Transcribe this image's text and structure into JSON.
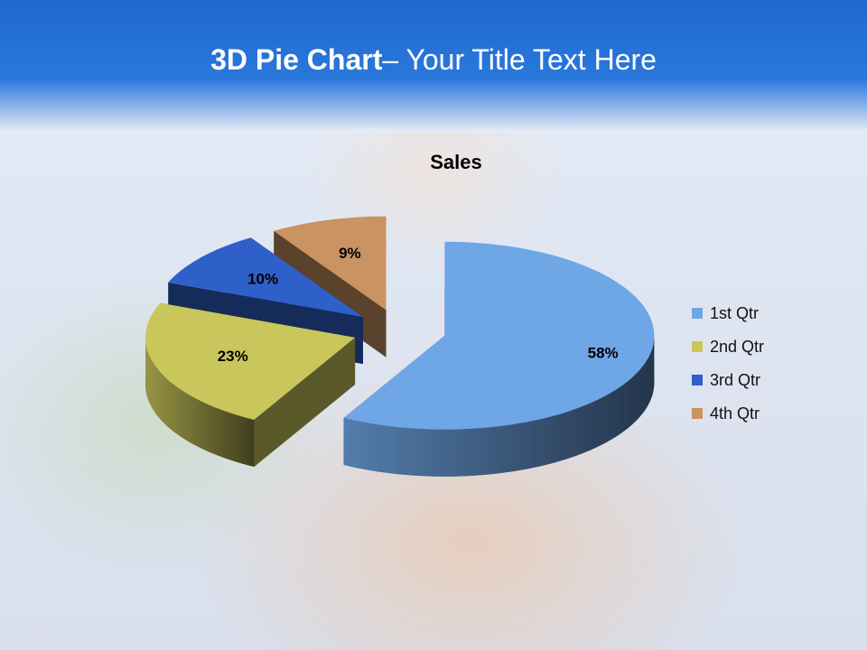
{
  "slide": {
    "title_bold": "3D Pie Chart",
    "title_rest": "– Your Title Text Here"
  },
  "chart_data": {
    "type": "pie",
    "title": "Sales",
    "categories": [
      "1st Qtr",
      "2nd Qtr",
      "3rd Qtr",
      "4th Qtr"
    ],
    "values": [
      58,
      23,
      10,
      9
    ],
    "value_labels": [
      "58%",
      "23%",
      "10%",
      "9%"
    ],
    "colors": [
      "#6fa6e6",
      "#c9c65c",
      "#2f5fc9",
      "#c99362"
    ],
    "legend": "right"
  }
}
